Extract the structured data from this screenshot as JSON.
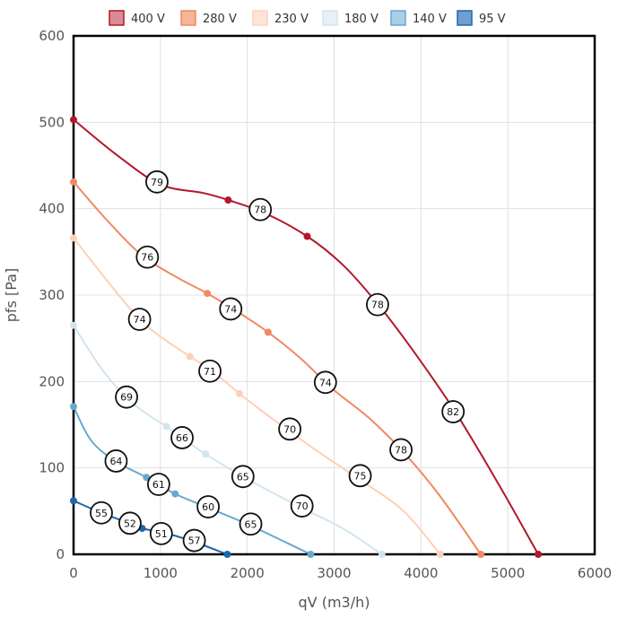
{
  "chart_data": {
    "type": "line",
    "xlabel": "qV (m3/h)",
    "ylabel": "pfs [Pa]",
    "xlim": [
      0,
      6000
    ],
    "ylim": [
      0,
      600
    ],
    "xticks": [
      0,
      1000,
      2000,
      3000,
      4000,
      5000,
      6000
    ],
    "yticks": [
      0,
      100,
      200,
      300,
      400,
      500,
      600
    ],
    "grid": true,
    "legend_position": "top",
    "series": [
      {
        "name": "400 V",
        "color": "#b2182b",
        "fill": "#d98c96",
        "points": [
          [
            0,
            503
          ],
          [
            1780,
            410
          ],
          [
            2690,
            368
          ],
          [
            5350,
            0
          ]
        ],
        "curve": [
          [
            0,
            503
          ],
          [
            500,
            462
          ],
          [
            1000,
            428
          ],
          [
            1500,
            418
          ],
          [
            1780,
            410
          ],
          [
            2200,
            395
          ],
          [
            2690,
            368
          ],
          [
            3100,
            335
          ],
          [
            3500,
            290
          ],
          [
            3900,
            237
          ],
          [
            4400,
            164
          ],
          [
            4900,
            80
          ],
          [
            5350,
            0
          ]
        ],
        "badges": [
          {
            "x": 960,
            "y": 431,
            "label": "79"
          },
          {
            "x": 2150,
            "y": 399,
            "label": "78"
          },
          {
            "x": 3500,
            "y": 289,
            "label": "78"
          },
          {
            "x": 4370,
            "y": 165,
            "label": "82"
          }
        ]
      },
      {
        "name": "280 V",
        "color": "#ef8a62",
        "fill": "#f5b596",
        "points": [
          [
            0,
            431
          ],
          [
            1540,
            302
          ],
          [
            2240,
            257
          ],
          [
            4690,
            0
          ]
        ],
        "curve": [
          [
            0,
            431
          ],
          [
            400,
            385
          ],
          [
            800,
            345
          ],
          [
            1200,
            320
          ],
          [
            1540,
            302
          ],
          [
            1900,
            280
          ],
          [
            2240,
            257
          ],
          [
            2600,
            228
          ],
          [
            3000,
            190
          ],
          [
            3400,
            158
          ],
          [
            3800,
            118
          ],
          [
            4200,
            70
          ],
          [
            4690,
            0
          ]
        ],
        "badges": [
          {
            "x": 850,
            "y": 344,
            "label": "76"
          },
          {
            "x": 1810,
            "y": 284,
            "label": "74"
          },
          {
            "x": 2900,
            "y": 199,
            "label": "74"
          },
          {
            "x": 3770,
            "y": 121,
            "label": "78"
          }
        ]
      },
      {
        "name": "230 V",
        "color": "#fdd0b8",
        "fill": "#fde6d8",
        "points": [
          [
            0,
            366
          ],
          [
            1340,
            229
          ],
          [
            1910,
            186
          ],
          [
            4220,
            0
          ]
        ],
        "curve": [
          [
            0,
            366
          ],
          [
            400,
            315
          ],
          [
            750,
            273
          ],
          [
            1000,
            252
          ],
          [
            1340,
            229
          ],
          [
            1600,
            212
          ],
          [
            1910,
            186
          ],
          [
            2300,
            156
          ],
          [
            2800,
            120
          ],
          [
            3300,
            86
          ],
          [
            3800,
            50
          ],
          [
            4220,
            0
          ]
        ],
        "badges": [
          {
            "x": 760,
            "y": 272,
            "label": "74"
          },
          {
            "x": 1570,
            "y": 212,
            "label": "71"
          },
          {
            "x": 2490,
            "y": 145,
            "label": "70"
          },
          {
            "x": 3300,
            "y": 91,
            "label": "75"
          }
        ]
      },
      {
        "name": "180 V",
        "color": "#d1e5f0",
        "fill": "#e6f1f7",
        "points": [
          [
            0,
            265
          ],
          [
            1070,
            148
          ],
          [
            1520,
            116
          ],
          [
            3550,
            0
          ]
        ],
        "curve": [
          [
            0,
            265
          ],
          [
            300,
            218
          ],
          [
            600,
            182
          ],
          [
            850,
            162
          ],
          [
            1070,
            148
          ],
          [
            1300,
            131
          ],
          [
            1520,
            116
          ],
          [
            1950,
            90
          ],
          [
            2600,
            55
          ],
          [
            3100,
            30
          ],
          [
            3550,
            0
          ]
        ],
        "badges": [
          {
            "x": 610,
            "y": 182,
            "label": "69"
          },
          {
            "x": 1250,
            "y": 135,
            "label": "66"
          },
          {
            "x": 1950,
            "y": 90,
            "label": "65"
          },
          {
            "x": 2630,
            "y": 56,
            "label": "70"
          }
        ]
      },
      {
        "name": "140 V",
        "color": "#67a9cf",
        "fill": "#a9cfe6",
        "points": [
          [
            0,
            171
          ],
          [
            840,
            89
          ],
          [
            1170,
            70
          ],
          [
            2730,
            0
          ]
        ],
        "curve": [
          [
            0,
            171
          ],
          [
            200,
            132
          ],
          [
            480,
            108
          ],
          [
            840,
            89
          ],
          [
            1170,
            70
          ],
          [
            1550,
            54
          ],
          [
            2000,
            35
          ],
          [
            2400,
            16
          ],
          [
            2730,
            0
          ]
        ],
        "badges": [
          {
            "x": 490,
            "y": 108,
            "label": "64"
          },
          {
            "x": 980,
            "y": 81,
            "label": "61"
          },
          {
            "x": 1550,
            "y": 55,
            "label": "60"
          },
          {
            "x": 2040,
            "y": 35,
            "label": "65"
          }
        ]
      },
      {
        "name": "95 V",
        "color": "#2166ac",
        "fill": "#6f9fcf",
        "points": [
          [
            0,
            62
          ],
          [
            790,
            30
          ],
          [
            1080,
            24
          ],
          [
            1770,
            0
          ]
        ],
        "curve": [
          [
            0,
            62
          ],
          [
            320,
            48
          ],
          [
            640,
            36
          ],
          [
            790,
            30
          ],
          [
            1080,
            24
          ],
          [
            1400,
            14
          ],
          [
            1770,
            0
          ]
        ],
        "badges": [
          {
            "x": 320,
            "y": 48,
            "label": "55"
          },
          {
            "x": 650,
            "y": 36,
            "label": "52"
          },
          {
            "x": 1010,
            "y": 24,
            "label": "51"
          },
          {
            "x": 1390,
            "y": 16,
            "label": "57"
          }
        ]
      }
    ]
  }
}
